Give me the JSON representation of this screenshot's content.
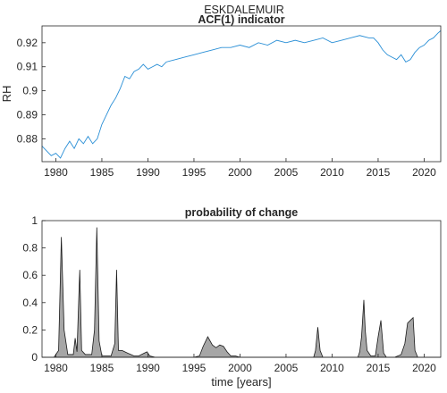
{
  "figure": {
    "suptitle": "ESKDALEMUIR"
  },
  "chart_data": [
    {
      "type": "line",
      "title": "ACF(1) indicator",
      "xlabel": "",
      "ylabel": "RH",
      "xlim": [
        1978.5,
        2021.8
      ],
      "ylim": [
        0.8705,
        0.927
      ],
      "grid": false,
      "xticks": [
        1980,
        1985,
        1990,
        1995,
        2000,
        2005,
        2010,
        2015,
        2020
      ],
      "yticks": [
        0.88,
        0.89,
        0.9,
        0.91,
        0.92
      ],
      "ytick_labels": [
        "0.88",
        "0.89",
        "0.9",
        "0.91",
        "0.92"
      ],
      "series": [
        {
          "color": "#2a8fd6",
          "x": [
            1978.5,
            1979.0,
            1979.5,
            1980.0,
            1980.5,
            1981.0,
            1981.5,
            1982.0,
            1982.5,
            1983.0,
            1983.5,
            1984.0,
            1984.5,
            1985.0,
            1985.5,
            1986.0,
            1986.5,
            1987.0,
            1987.5,
            1988.0,
            1988.5,
            1989.0,
            1989.5,
            1990.0,
            1990.5,
            1991.0,
            1991.5,
            1992.0,
            1993.0,
            1994.0,
            1995.0,
            1996.0,
            1997.0,
            1998.0,
            1999.0,
            2000.0,
            2001.0,
            2002.0,
            2003.0,
            2004.0,
            2005.0,
            2006.0,
            2007.0,
            2008.0,
            2009.0,
            2010.0,
            2011.0,
            2012.0,
            2013.0,
            2014.0,
            2014.5,
            2015.0,
            2015.5,
            2016.0,
            2016.5,
            2017.0,
            2017.5,
            2018.0,
            2018.5,
            2019.0,
            2019.5,
            2020.0,
            2020.5,
            2021.0,
            2021.5,
            2021.8
          ],
          "y": [
            0.877,
            0.875,
            0.873,
            0.874,
            0.872,
            0.876,
            0.879,
            0.876,
            0.88,
            0.878,
            0.881,
            0.878,
            0.88,
            0.886,
            0.89,
            0.894,
            0.897,
            0.901,
            0.906,
            0.905,
            0.908,
            0.909,
            0.911,
            0.909,
            0.91,
            0.911,
            0.91,
            0.912,
            0.913,
            0.914,
            0.915,
            0.916,
            0.917,
            0.918,
            0.918,
            0.919,
            0.918,
            0.92,
            0.919,
            0.921,
            0.92,
            0.921,
            0.92,
            0.921,
            0.922,
            0.92,
            0.921,
            0.922,
            0.923,
            0.922,
            0.922,
            0.92,
            0.917,
            0.915,
            0.914,
            0.913,
            0.915,
            0.912,
            0.913,
            0.916,
            0.918,
            0.919,
            0.921,
            0.922,
            0.924,
            0.925
          ]
        }
      ]
    },
    {
      "type": "area",
      "title": "probability of change",
      "xlabel": "time [years]",
      "ylabel": "",
      "xlim": [
        1978.5,
        2021.8
      ],
      "ylim": [
        0,
        1
      ],
      "grid": false,
      "xticks": [
        1980,
        1985,
        1990,
        1995,
        2000,
        2005,
        2010,
        2015,
        2020
      ],
      "yticks": [
        0,
        0.2,
        0.4,
        0.6,
        0.8,
        1
      ],
      "ytick_labels": [
        "0",
        "0.2",
        "0.4",
        "0.6",
        "0.8",
        "1"
      ],
      "series": [
        {
          "color": "#a6a6a6",
          "x": [
            1978.5,
            1979.8,
            1980.3,
            1980.6,
            1980.9,
            1981.3,
            1981.9,
            1982.1,
            1982.3,
            1982.5,
            1982.6,
            1982.8,
            1983.2,
            1983.9,
            1984.2,
            1984.45,
            1984.7,
            1985.0,
            1986.0,
            1986.4,
            1986.6,
            1986.8,
            1987.2,
            1987.8,
            1988.5,
            1989.0,
            1989.6,
            1989.9,
            1990.2,
            1990.8,
            1995.0,
            1995.6,
            1996.0,
            1996.5,
            1997.0,
            1997.4,
            1997.8,
            1998.2,
            1998.6,
            1999.0,
            1999.5,
            2000.0,
            2008.0,
            2008.2,
            2008.45,
            2008.7,
            2009.0,
            2012.8,
            2013.0,
            2013.2,
            2013.45,
            2013.6,
            2013.8,
            2014.2,
            2014.7,
            2015.0,
            2015.3,
            2015.6,
            2015.9,
            2016.8,
            2017.5,
            2017.9,
            2018.2,
            2018.5,
            2018.8,
            2019.0,
            2019.3,
            2021.8
          ],
          "y": [
            0,
            0,
            0.05,
            0.88,
            0.2,
            0.02,
            0.02,
            0.14,
            0.04,
            0.45,
            0.64,
            0.05,
            0.02,
            0.02,
            0.2,
            0.95,
            0.12,
            0.01,
            0.01,
            0.1,
            0.64,
            0.05,
            0.05,
            0.03,
            0.01,
            0.01,
            0.03,
            0.04,
            0.01,
            0,
            0,
            0.01,
            0.08,
            0.15,
            0.09,
            0.07,
            0.09,
            0.08,
            0.04,
            0.01,
            0.01,
            0,
            0,
            0.05,
            0.22,
            0.05,
            0,
            0,
            0.04,
            0.15,
            0.42,
            0.2,
            0.05,
            0.01,
            0.01,
            0.15,
            0.27,
            0.03,
            0,
            0,
            0.02,
            0.1,
            0.25,
            0.27,
            0.29,
            0.05,
            0,
            0
          ]
        }
      ]
    }
  ]
}
